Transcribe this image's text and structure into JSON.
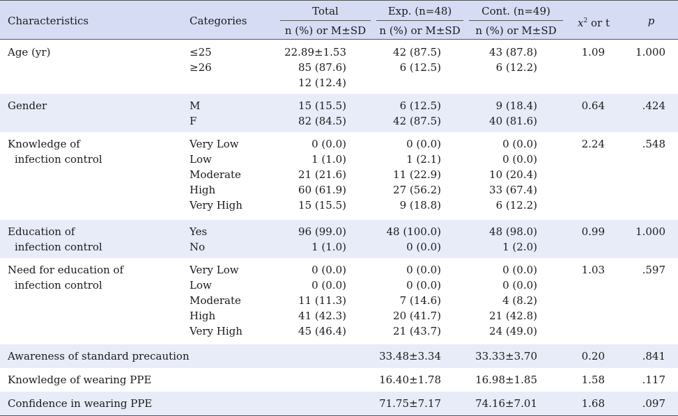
{
  "header": {
    "characteristics": "Characteristics",
    "categories": "Categories",
    "total": "Total",
    "exp": "Exp. (n=48)",
    "cont": "Cont. (n=49)",
    "stat_x": "x",
    "stat_sup": "2",
    "stat_rest": " or t",
    "p": "p",
    "sub": "n (%) or M±SD"
  },
  "rows": [
    {
      "char": [
        "Age (yr)"
      ],
      "cats": [
        "≤25",
        "≥26"
      ],
      "total": [
        "22.89±1.53",
        "85 (87.6)",
        "12 (12.4)"
      ],
      "exp": [
        "42 (87.5)",
        "6 (12.5)"
      ],
      "cont": [
        "43 (87.8)",
        "6 (12.2)"
      ],
      "stat": "1.09",
      "p": "1.000"
    },
    {
      "char": [
        "Gender"
      ],
      "cats": [
        "M",
        "F"
      ],
      "total": [
        "15 (15.5)",
        "82 (84.5)"
      ],
      "exp": [
        "6 (12.5)",
        "42 (87.5)"
      ],
      "cont": [
        "9 (18.4)",
        "40 (81.6)"
      ],
      "stat": "0.64",
      "p": ".424"
    },
    {
      "char": [
        "Knowledge of",
        "infection control"
      ],
      "cats": [
        "Very Low",
        "Low",
        "Moderate",
        "High",
        "Very High"
      ],
      "total": [
        "0 (0.0)",
        "1 (1.0)",
        "21 (21.6)",
        "60 (61.9)",
        "15 (15.5)"
      ],
      "exp": [
        "0 (0.0)",
        "1 (2.1)",
        "11 (22.9)",
        "27 (56.2)",
        "9 (18.8)"
      ],
      "cont": [
        "0 (0.0)",
        "0 (0.0)",
        "10 (20.4)",
        "33 (67.4)",
        "6 (12.2)"
      ],
      "stat": "2.24",
      "p": ".548"
    },
    {
      "char": [
        "Education of",
        "infection control"
      ],
      "cats": [
        "Yes",
        "No"
      ],
      "total": [
        "96 (99.0)",
        "1 (1.0)"
      ],
      "exp": [
        "48 (100.0)",
        "0 (0.0)"
      ],
      "cont": [
        "48 (98.0)",
        "1 (2.0)"
      ],
      "stat": "0.99",
      "p": "1.000"
    },
    {
      "char": [
        "Need for education of",
        "infection control"
      ],
      "cats": [
        "Very Low",
        "Low",
        "Moderate",
        "High",
        "Very High"
      ],
      "total": [
        "0 (0.0)",
        "0 (0.0)",
        "11 (11.3)",
        "41 (42.3)",
        "45 (46.4)"
      ],
      "exp": [
        "0 (0.0)",
        "0 (0.0)",
        "7 (14.6)",
        "20 (41.7)",
        "21 (43.7)"
      ],
      "cont": [
        "0 (0.0)",
        "0 (0.0)",
        "4 (8.2)",
        "21 (42.8)",
        "24 (49.0)"
      ],
      "stat": "1.03",
      "p": ".597"
    },
    {
      "char": [
        "Awareness of standard precaution"
      ],
      "cats": [],
      "total": [],
      "exp": [
        "33.48±3.34"
      ],
      "cont": [
        "33.33±3.70"
      ],
      "stat": "0.20",
      "p": ".841"
    },
    {
      "char": [
        "Knowledge of wearing PPE"
      ],
      "cats": [],
      "total": [],
      "exp": [
        "16.40±1.78"
      ],
      "cont": [
        "16.98±1.85"
      ],
      "stat": "1.58",
      "p": ".117"
    },
    {
      "char": [
        "Confidence in wearing PPE"
      ],
      "cats": [],
      "total": [],
      "exp": [
        "71.75±7.17"
      ],
      "cont": [
        "74.16±7.01"
      ],
      "stat": "1.68",
      "p": ".097"
    }
  ]
}
